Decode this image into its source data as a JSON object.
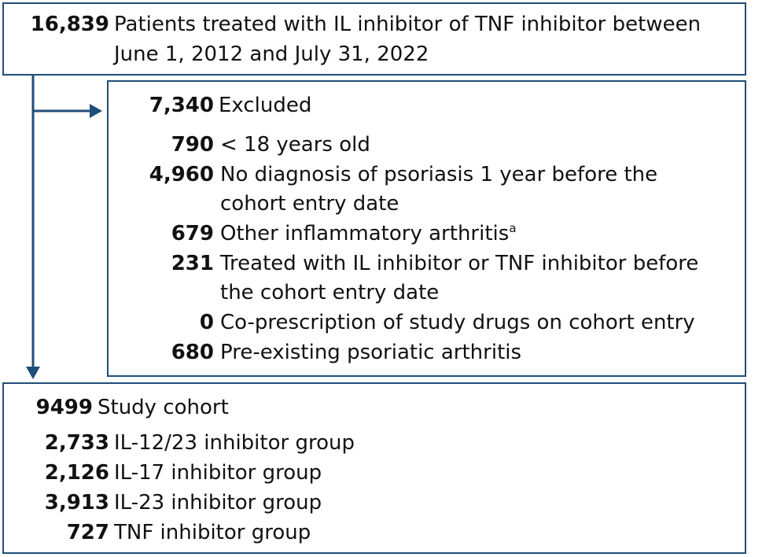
{
  "top_box": {
    "count": "16,839",
    "label_line1": "Patients treated with IL inhibitor of TNF inhibitor between",
    "label_line2": "June 1, 2012 and July 31, 2022"
  },
  "excluded_box": {
    "count": "7,340",
    "label": "Excluded",
    "items": [
      {
        "count": "790",
        "line1": "< 18 years old"
      },
      {
        "count": "4,960",
        "line1": "No diagnosis of psoriasis 1 year before the",
        "line2": "cohort entry date"
      },
      {
        "count": "679",
        "line1": "Other inflammatory arthritis",
        "sup": "a"
      },
      {
        "count": "231",
        "line1": "Treated with IL inhibitor or TNF inhibitor before",
        "line2": "the cohort entry date"
      },
      {
        "count": "0",
        "line1": "Co-prescription of study drugs on cohort entry"
      },
      {
        "count": "680",
        "line1": "Pre-existing psoriatic arthritis"
      }
    ]
  },
  "cohort_box": {
    "count": "9499",
    "label": "Study cohort",
    "groups": [
      {
        "count": "2,733",
        "label": "IL-12/23 inhibitor group"
      },
      {
        "count": "2,126",
        "label": "IL-17 inhibitor group"
      },
      {
        "count": "3,913",
        "label": "IL-23 inhibitor group"
      },
      {
        "count": "727",
        "label": "TNF inhibitor group"
      }
    ]
  },
  "colors": {
    "border": "#1f4e79",
    "arrow": "#1f4e79",
    "text": "#111111"
  }
}
